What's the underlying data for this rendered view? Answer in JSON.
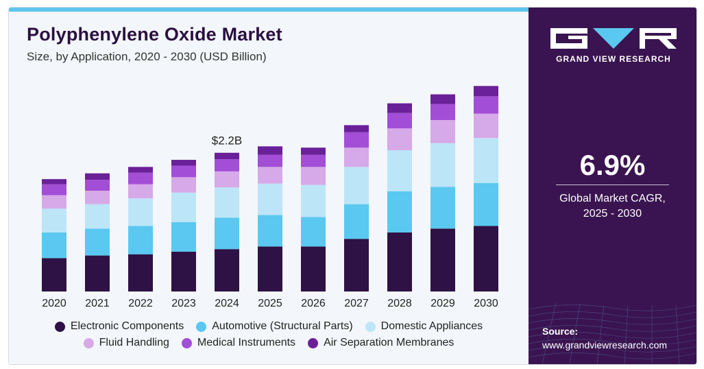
{
  "header": {
    "title": "Polyphenylene Oxide Market",
    "subtitle": "Size, by Application, 2020 - 2030 (USD Billion)"
  },
  "chart_data": {
    "type": "bar",
    "stacked": true,
    "categories": [
      "2020",
      "2021",
      "2022",
      "2023",
      "2024",
      "2025",
      "2026",
      "2027",
      "2028",
      "2029",
      "2030"
    ],
    "series": [
      {
        "name": "Electronic Components",
        "color": "#2e1245",
        "values": [
          0.52,
          0.56,
          0.58,
          0.62,
          0.66,
          0.7,
          0.7,
          0.82,
          0.92,
          0.98,
          1.02
        ]
      },
      {
        "name": "Automotive (Structural Parts)",
        "color": "#5ac8f0",
        "values": [
          0.4,
          0.42,
          0.44,
          0.46,
          0.49,
          0.49,
          0.46,
          0.54,
          0.64,
          0.65,
          0.67
        ]
      },
      {
        "name": "Domestic Appliances",
        "color": "#bde5f8",
        "values": [
          0.37,
          0.38,
          0.43,
          0.46,
          0.47,
          0.49,
          0.5,
          0.58,
          0.64,
          0.68,
          0.7
        ]
      },
      {
        "name": "Fluid Handling",
        "color": "#d6a9e8",
        "values": [
          0.21,
          0.21,
          0.22,
          0.24,
          0.25,
          0.26,
          0.28,
          0.3,
          0.34,
          0.36,
          0.38
        ]
      },
      {
        "name": "Medical Instruments",
        "color": "#a24ed6",
        "values": [
          0.17,
          0.17,
          0.18,
          0.18,
          0.19,
          0.19,
          0.19,
          0.24,
          0.24,
          0.25,
          0.27
        ]
      },
      {
        "name": "Air Separation Membranes",
        "color": "#6a2098",
        "values": [
          0.08,
          0.1,
          0.09,
          0.09,
          0.1,
          0.13,
          0.11,
          0.11,
          0.15,
          0.15,
          0.16
        ]
      }
    ],
    "annotations": [
      {
        "category": "2024",
        "text": "$2.2B"
      }
    ],
    "ylim": [
      0,
      3.3
    ],
    "grid": false,
    "legend_position": "bottom"
  },
  "sidebar": {
    "brand_name": "GRAND VIEW RESEARCH",
    "cagr_value": "6.9%",
    "cagr_label_line1": "Global Market CAGR,",
    "cagr_label_line2": "2025 - 2030",
    "source_label": "Source:",
    "source_url": "www.grandviewresearch.com"
  }
}
